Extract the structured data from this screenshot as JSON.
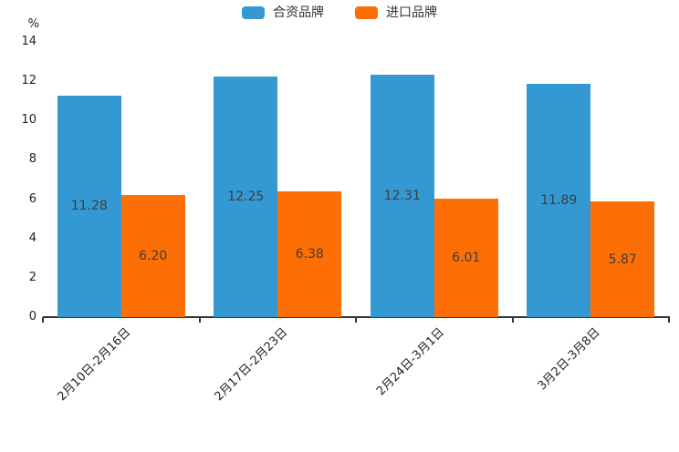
{
  "accent_colors": {
    "blue": "#3499d2",
    "orange": "#fd6e05",
    "axis": "#333333"
  },
  "y_unit_label": "%",
  "chart_data": {
    "type": "bar",
    "title": "",
    "categories": [
      "2月10日-2月16日",
      "2月17日-2月23日",
      "2月24日-3月1日",
      "3月2日-3月8日"
    ],
    "series": [
      {
        "name": "合资品牌",
        "color": "#3499d2",
        "values": [
          11.28,
          12.25,
          12.31,
          11.89
        ]
      },
      {
        "name": "进口品牌",
        "color": "#fd6e05",
        "values": [
          6.2,
          6.38,
          6.01,
          5.87
        ]
      }
    ],
    "xlabel": "",
    "ylabel": "%",
    "ylim": [
      0,
      14
    ],
    "y_ticks": [
      0,
      2,
      4,
      6,
      8,
      10,
      12,
      14
    ],
    "grid": false,
    "legend_position": "top-center",
    "value_labels": "centered-inside-bars",
    "value_label_format": "2-decimals",
    "x_label_rotation_deg": 45
  }
}
